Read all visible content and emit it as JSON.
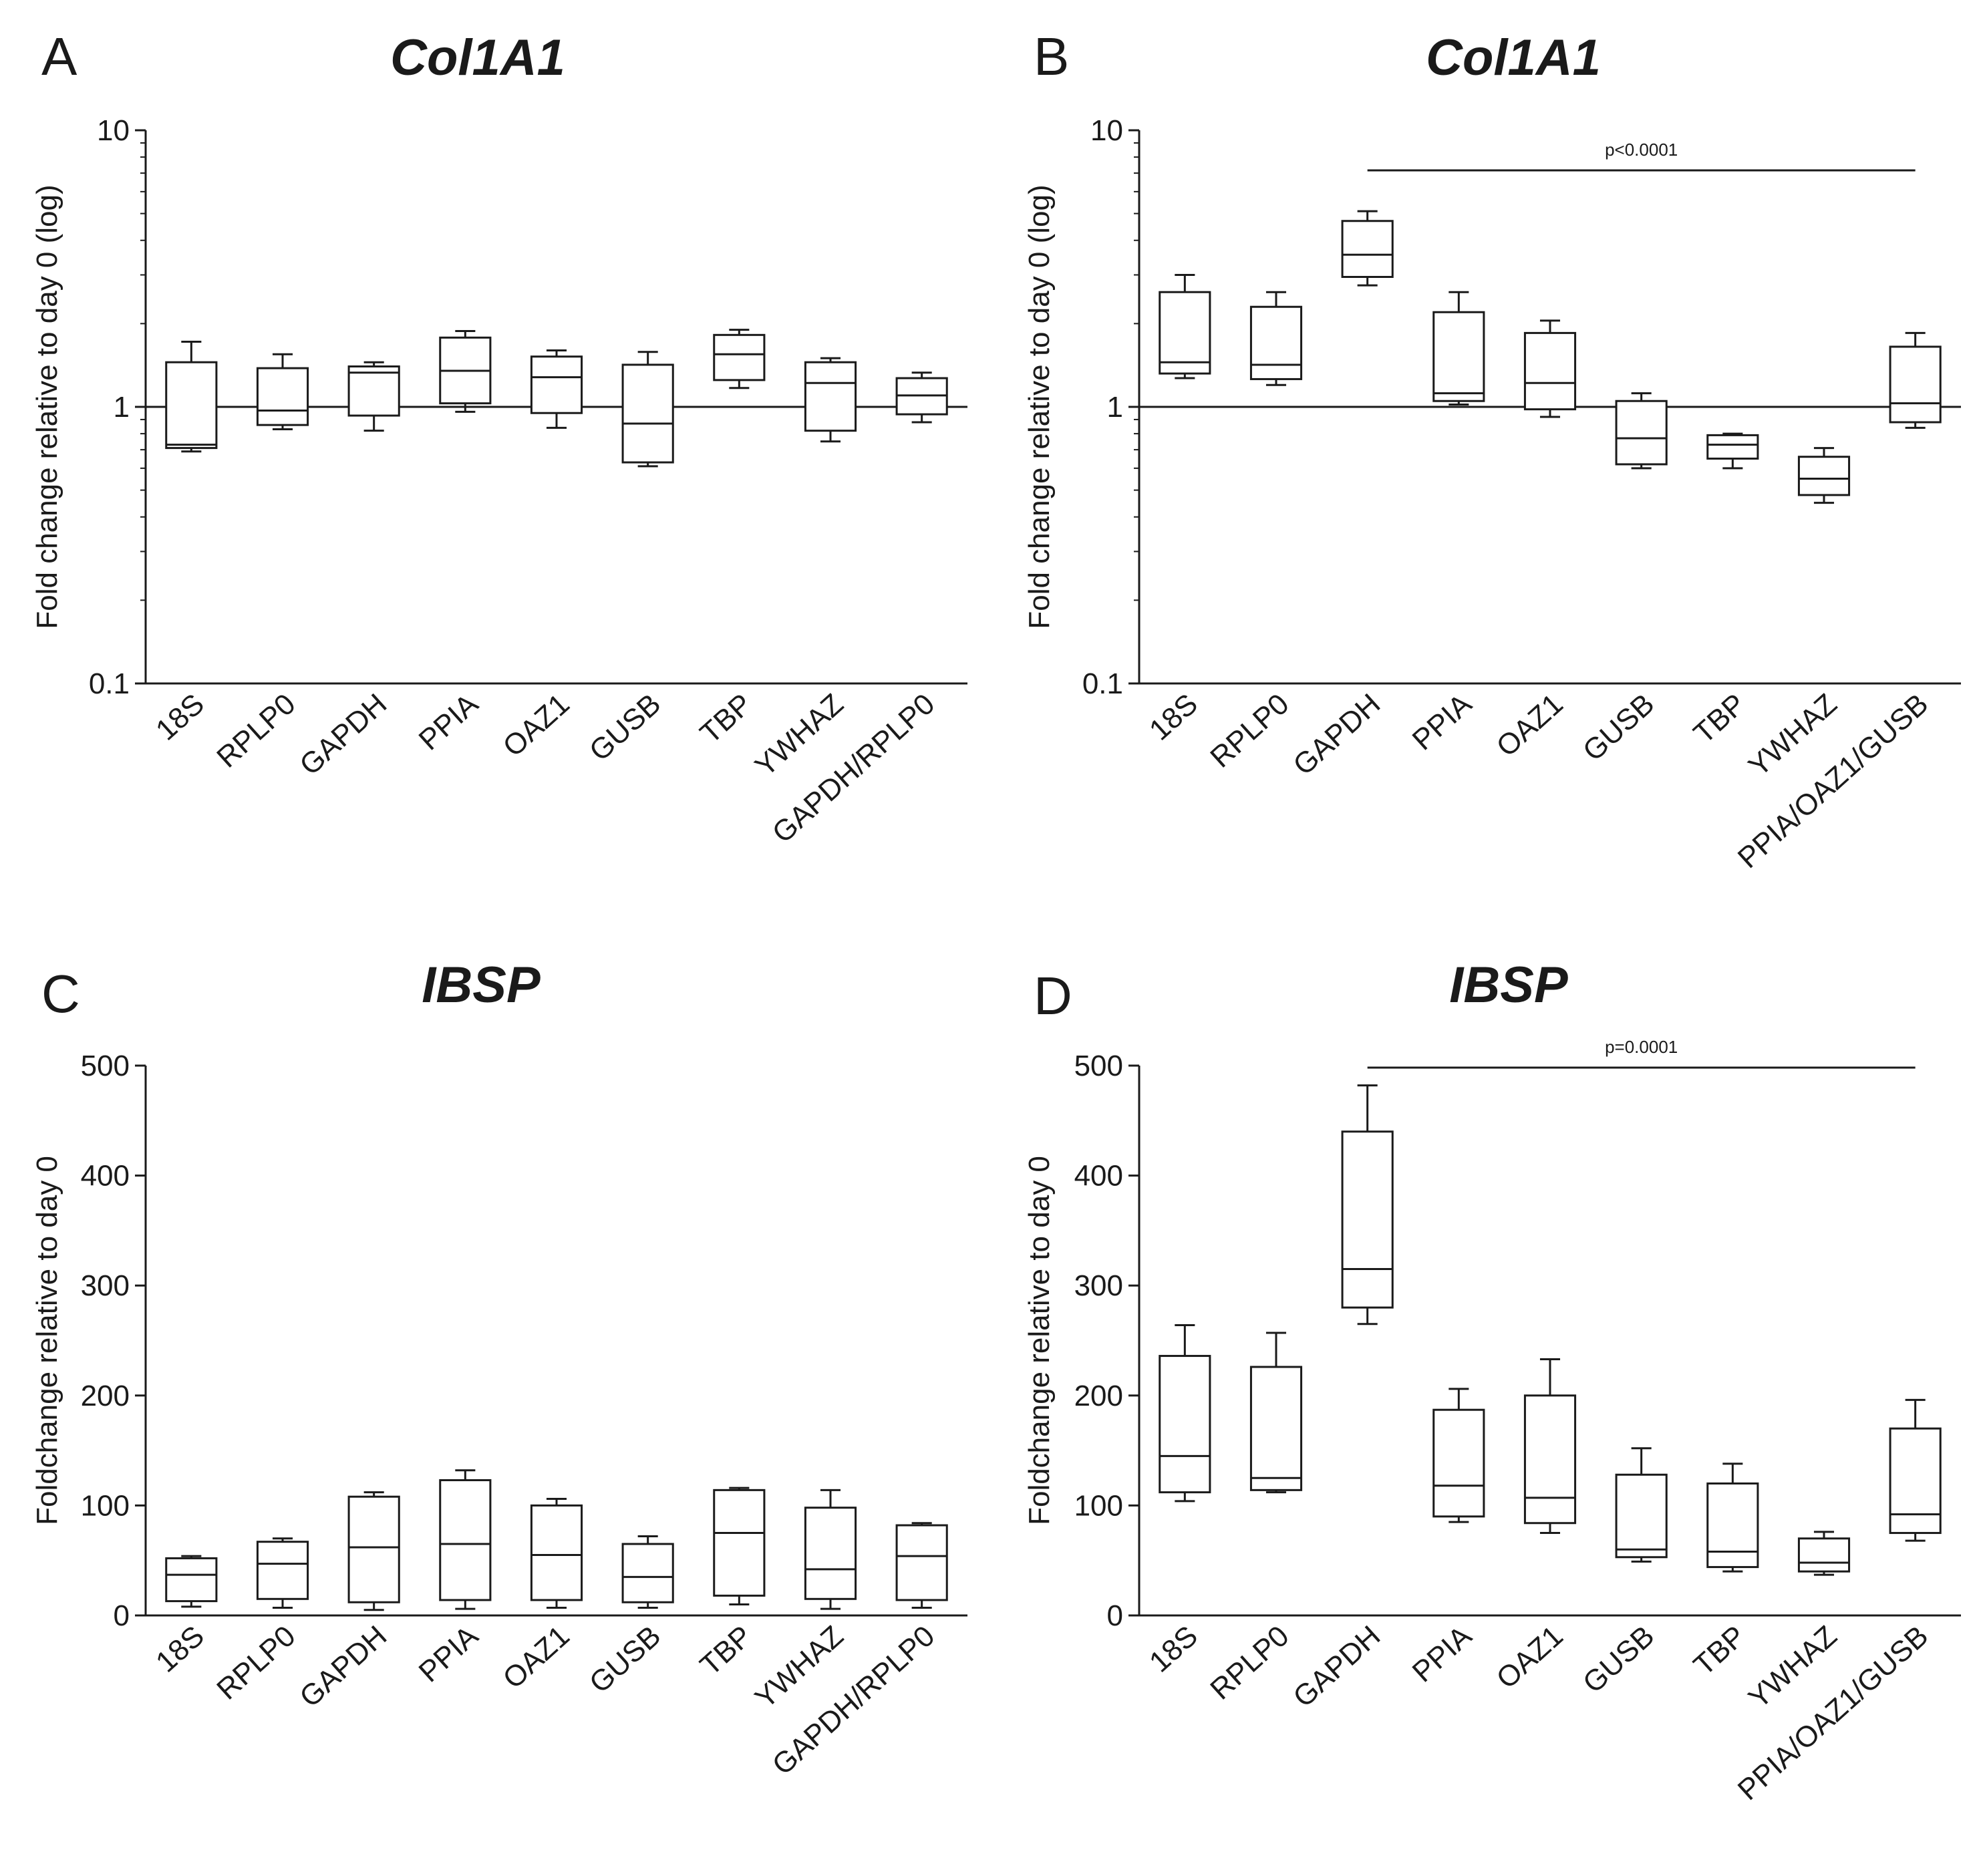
{
  "colors": {
    "ink": "#1a1a1a",
    "background": "#ffffff"
  },
  "chart_data": [
    {
      "panel": "A",
      "title": "Col1A1",
      "type": "box",
      "ylabel": "Fold change relative to day 0 (log)",
      "yscale": "log",
      "ylim": [
        0.1,
        10
      ],
      "yticks": [
        0.1,
        1,
        10
      ],
      "ytick_labels": [
        "0.1",
        "1",
        "10"
      ],
      "reference_line": 1,
      "categories": [
        "18S",
        "RPLP0",
        "GAPDH",
        "PPIA",
        "OAZ1",
        "GUSB",
        "TBP",
        "YWHAZ",
        "GAPDH/RPLP0"
      ],
      "boxes": [
        {
          "min": 0.69,
          "q1": 0.71,
          "median": 0.73,
          "q3": 1.45,
          "max": 1.72
        },
        {
          "min": 0.83,
          "q1": 0.86,
          "median": 0.97,
          "q3": 1.38,
          "max": 1.55
        },
        {
          "min": 0.82,
          "q1": 0.93,
          "median": 1.33,
          "q3": 1.4,
          "max": 1.45
        },
        {
          "min": 0.96,
          "q1": 1.03,
          "median": 1.35,
          "q3": 1.78,
          "max": 1.88
        },
        {
          "min": 0.84,
          "q1": 0.95,
          "median": 1.28,
          "q3": 1.52,
          "max": 1.6
        },
        {
          "min": 0.61,
          "q1": 0.63,
          "median": 0.87,
          "q3": 1.42,
          "max": 1.58
        },
        {
          "min": 1.17,
          "q1": 1.25,
          "median": 1.55,
          "q3": 1.82,
          "max": 1.9
        },
        {
          "min": 0.75,
          "q1": 0.82,
          "median": 1.22,
          "q3": 1.45,
          "max": 1.5
        },
        {
          "min": 0.88,
          "q1": 0.94,
          "median": 1.1,
          "q3": 1.27,
          "max": 1.33
        }
      ]
    },
    {
      "panel": "B",
      "title": "Col1A1",
      "type": "box",
      "ylabel": "Fold change relative to day 0 (log)",
      "yscale": "log",
      "ylim": [
        0.1,
        10
      ],
      "yticks": [
        0.1,
        1,
        10
      ],
      "ytick_labels": [
        "0.1",
        "1",
        "10"
      ],
      "reference_line": 1,
      "categories": [
        "18S",
        "RPLP0",
        "GAPDH",
        "PPIA",
        "OAZ1",
        "GUSB",
        "TBP",
        "YWHAZ",
        "PPIA/OAZ1/GUSB"
      ],
      "boxes": [
        {
          "min": 1.27,
          "q1": 1.32,
          "median": 1.45,
          "q3": 2.6,
          "max": 3.0
        },
        {
          "min": 1.2,
          "q1": 1.26,
          "median": 1.42,
          "q3": 2.3,
          "max": 2.6
        },
        {
          "min": 2.75,
          "q1": 2.95,
          "median": 3.55,
          "q3": 4.7,
          "max": 5.1
        },
        {
          "min": 1.02,
          "q1": 1.05,
          "median": 1.12,
          "q3": 2.2,
          "max": 2.6
        },
        {
          "min": 0.92,
          "q1": 0.98,
          "median": 1.22,
          "q3": 1.85,
          "max": 2.05
        },
        {
          "min": 0.6,
          "q1": 0.62,
          "median": 0.77,
          "q3": 1.05,
          "max": 1.12
        },
        {
          "min": 0.6,
          "q1": 0.65,
          "median": 0.73,
          "q3": 0.79,
          "max": 0.8
        },
        {
          "min": 0.45,
          "q1": 0.48,
          "median": 0.55,
          "q3": 0.66,
          "max": 0.71
        },
        {
          "min": 0.84,
          "q1": 0.88,
          "median": 1.03,
          "q3": 1.65,
          "max": 1.85
        }
      ],
      "significance": {
        "label": "p<0.0001",
        "from": "GAPDH",
        "to": "PPIA/OAZ1/GUSB"
      }
    },
    {
      "panel": "C",
      "title": "IBSP",
      "type": "box",
      "ylabel": "Foldchange relative to day 0",
      "yscale": "linear",
      "ylim": [
        0,
        500
      ],
      "yticks": [
        0,
        100,
        200,
        300,
        400,
        500
      ],
      "ytick_labels": [
        "0",
        "100",
        "200",
        "300",
        "400",
        "500"
      ],
      "categories": [
        "18S",
        "RPLP0",
        "GAPDH",
        "PPIA",
        "OAZ1",
        "GUSB",
        "TBP",
        "YWHAZ",
        "GAPDH/RPLP0"
      ],
      "boxes": [
        {
          "min": 8,
          "q1": 13,
          "median": 37,
          "q3": 52,
          "max": 54
        },
        {
          "min": 7,
          "q1": 15,
          "median": 47,
          "q3": 67,
          "max": 70
        },
        {
          "min": 5,
          "q1": 12,
          "median": 62,
          "q3": 108,
          "max": 112
        },
        {
          "min": 6,
          "q1": 14,
          "median": 65,
          "q3": 123,
          "max": 132
        },
        {
          "min": 7,
          "q1": 14,
          "median": 55,
          "q3": 100,
          "max": 106
        },
        {
          "min": 7,
          "q1": 12,
          "median": 35,
          "q3": 65,
          "max": 72
        },
        {
          "min": 10,
          "q1": 18,
          "median": 75,
          "q3": 114,
          "max": 116
        },
        {
          "min": 6,
          "q1": 15,
          "median": 42,
          "q3": 98,
          "max": 114
        },
        {
          "min": 7,
          "q1": 14,
          "median": 54,
          "q3": 82,
          "max": 84
        }
      ]
    },
    {
      "panel": "D",
      "title": "IBSP",
      "type": "box",
      "ylabel": "Foldchange relative to day 0",
      "yscale": "linear",
      "ylim": [
        0,
        500
      ],
      "yticks": [
        0,
        100,
        200,
        300,
        400,
        500
      ],
      "ytick_labels": [
        "0",
        "100",
        "200",
        "300",
        "400",
        "500"
      ],
      "categories": [
        "18S",
        "RPLP0",
        "GAPDH",
        "PPIA",
        "OAZ1",
        "GUSB",
        "TBP",
        "YWHAZ",
        "PPIA/OAZ1/GUSB"
      ],
      "boxes": [
        {
          "min": 104,
          "q1": 112,
          "median": 145,
          "q3": 236,
          "max": 264
        },
        {
          "min": 112,
          "q1": 114,
          "median": 125,
          "q3": 226,
          "max": 257
        },
        {
          "min": 265,
          "q1": 280,
          "median": 315,
          "q3": 440,
          "max": 482
        },
        {
          "min": 85,
          "q1": 90,
          "median": 118,
          "q3": 187,
          "max": 206
        },
        {
          "min": 75,
          "q1": 84,
          "median": 107,
          "q3": 200,
          "max": 233
        },
        {
          "min": 49,
          "q1": 53,
          "median": 60,
          "q3": 128,
          "max": 152
        },
        {
          "min": 40,
          "q1": 44,
          "median": 58,
          "q3": 120,
          "max": 138
        },
        {
          "min": 37,
          "q1": 40,
          "median": 48,
          "q3": 70,
          "max": 76
        },
        {
          "min": 68,
          "q1": 75,
          "median": 92,
          "q3": 170,
          "max": 196
        }
      ],
      "significance": {
        "label": "p=0.0001",
        "from": "GAPDH",
        "to": "PPIA/OAZ1/GUSB"
      }
    }
  ]
}
